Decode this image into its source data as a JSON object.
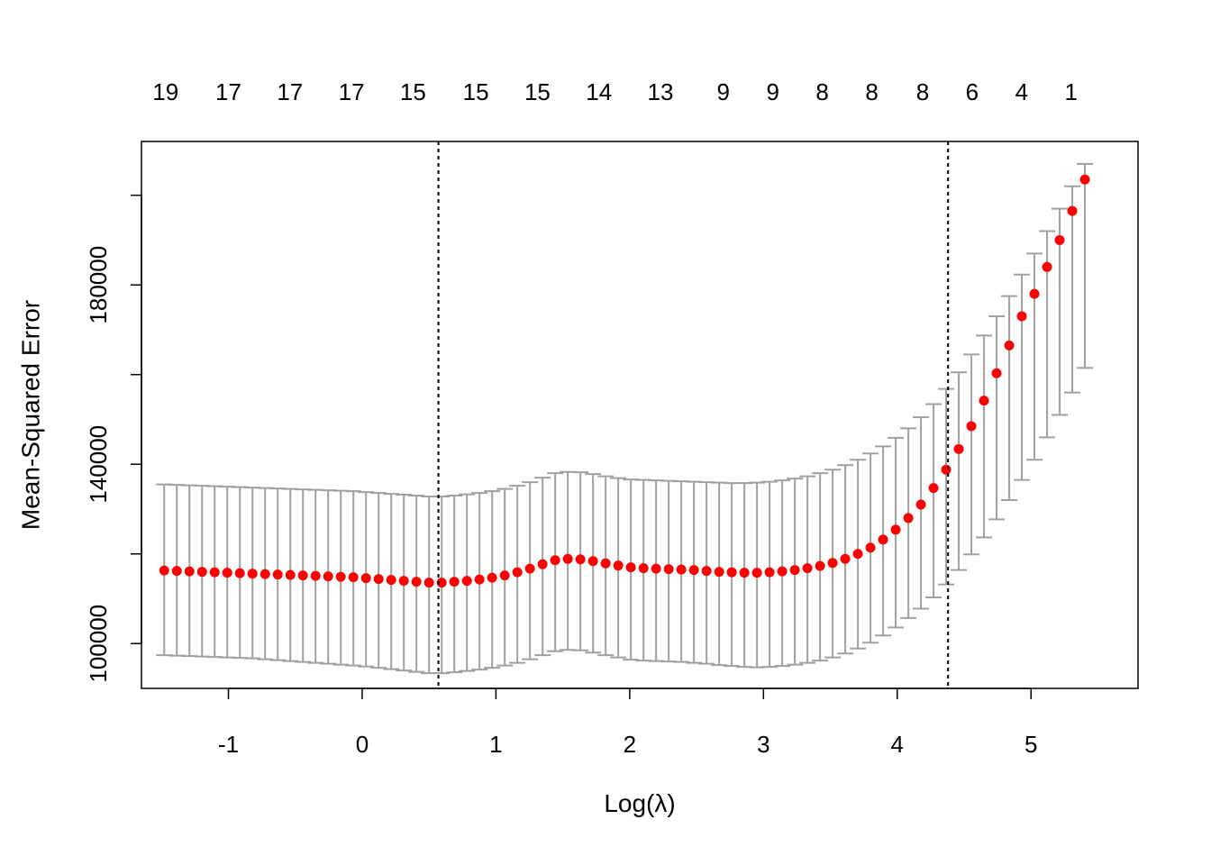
{
  "chart_data": {
    "type": "scatter",
    "xlabel": "Log(λ)",
    "ylabel": "Mean-Squared Error",
    "xlim": [
      -1.65,
      5.8
    ],
    "ylim": [
      90000,
      212000
    ],
    "x_ticks": [
      -1,
      0,
      1,
      2,
      3,
      4,
      5
    ],
    "x_tick_labels": [
      "-1",
      "0",
      "1",
      "2",
      "3",
      "4",
      "5"
    ],
    "y_ticks": [
      100000,
      120000,
      140000,
      160000,
      180000,
      200000
    ],
    "y_tick_labels": [
      "100000",
      "",
      "140000",
      "",
      "180000",
      ""
    ],
    "top_axis": {
      "x": [
        -1.47,
        -1.0,
        -0.54,
        -0.08,
        0.38,
        0.85,
        1.31,
        1.77,
        2.23,
        2.7,
        3.07,
        3.44,
        3.81,
        4.19,
        4.56,
        4.93,
        5.3
      ],
      "labels": [
        "19",
        "17",
        "17",
        "17",
        "15",
        "15",
        "15",
        "14",
        "13",
        "9",
        "9",
        "8",
        "8",
        "8",
        "6",
        "4",
        "1"
      ]
    },
    "vlines": [
      0.57,
      4.38
    ],
    "series": [
      {
        "x": [
          -1.48,
          -1.3857,
          -1.2914,
          -1.1971,
          -1.1029,
          -1.0086,
          -0.9143,
          -0.82,
          -0.7257,
          -0.6314,
          -0.5371,
          -0.4429,
          -0.3486,
          -0.2543,
          -0.16,
          -0.0657,
          0.0286,
          0.1229,
          0.2171,
          0.3114,
          0.4057,
          0.5,
          0.5943,
          0.6886,
          0.7829,
          0.8771,
          0.9714,
          1.0657,
          1.16,
          1.2543,
          1.3486,
          1.4429,
          1.5371,
          1.6314,
          1.7257,
          1.82,
          1.9143,
          2.0086,
          2.1029,
          2.1971,
          2.2914,
          2.3857,
          2.48,
          2.5743,
          2.6686,
          2.7629,
          2.8571,
          2.9514,
          3.0457,
          3.14,
          3.2343,
          3.3286,
          3.4229,
          3.5171,
          3.6114,
          3.7057,
          3.8,
          3.8943,
          3.9886,
          4.0829,
          4.1771,
          4.2714,
          4.3657,
          4.46,
          4.5543,
          4.6486,
          4.7429,
          4.8371,
          4.9314,
          5.0257,
          5.12,
          5.2143,
          5.3086,
          5.4029
        ],
        "y": [
          116300,
          116200,
          116100,
          116000,
          115900,
          115800,
          115700,
          115600,
          115500,
          115400,
          115300,
          115200,
          115100,
          115000,
          114900,
          114800,
          114600,
          114400,
          114200,
          114000,
          113800,
          113600,
          113600,
          113800,
          114000,
          114300,
          114700,
          115200,
          115900,
          116700,
          117700,
          118600,
          118900,
          118800,
          118400,
          117900,
          117400,
          117000,
          116800,
          116700,
          116600,
          116500,
          116400,
          116200,
          116000,
          115900,
          115800,
          115800,
          115900,
          116100,
          116400,
          116800,
          117300,
          118000,
          118900,
          120000,
          121400,
          123200,
          125400,
          128000,
          131000,
          134700,
          138800,
          143400,
          148500,
          154200,
          160300,
          166500,
          173000,
          178000,
          184000,
          190000,
          196500,
          203500
        ],
        "lower": [
          97400,
          97300,
          97200,
          97100,
          97000,
          96900,
          96800,
          96700,
          96500,
          96300,
          96100,
          95900,
          95700,
          95500,
          95300,
          95100,
          94900,
          94600,
          94300,
          94000,
          93700,
          93400,
          93400,
          93600,
          93900,
          94200,
          94600,
          95100,
          95700,
          96500,
          97400,
          98300,
          98600,
          98500,
          98000,
          97400,
          96900,
          96400,
          96200,
          96100,
          96000,
          95900,
          95700,
          95500,
          95200,
          95000,
          94800,
          94700,
          94800,
          95000,
          95300,
          95700,
          96200,
          96900,
          97800,
          98900,
          100200,
          101800,
          103600,
          105700,
          107800,
          110300,
          113200,
          116400,
          119900,
          123700,
          127700,
          132000,
          136500,
          141000,
          146000,
          151000,
          156000,
          161500
        ],
        "upper": [
          135500,
          135400,
          135300,
          135200,
          135100,
          135000,
          134900,
          134800,
          134700,
          134600,
          134500,
          134400,
          134300,
          134200,
          134100,
          134000,
          133800,
          133600,
          133400,
          133200,
          133000,
          132800,
          132800,
          133000,
          133300,
          133600,
          134000,
          134500,
          135200,
          136000,
          137000,
          138000,
          138300,
          138200,
          137800,
          137300,
          136900,
          136600,
          136500,
          136400,
          136300,
          136200,
          136100,
          136000,
          135900,
          135800,
          135800,
          135900,
          136100,
          136400,
          136800,
          137300,
          138000,
          138800,
          139800,
          141000,
          142400,
          144000,
          145900,
          148000,
          150500,
          153400,
          156800,
          160500,
          164500,
          168700,
          173000,
          177500,
          182300,
          187000,
          192000,
          197000,
          202000,
          207000
        ],
        "point_color": "#ff0000",
        "errorbar_color": "#a0a0a0"
      }
    ]
  }
}
